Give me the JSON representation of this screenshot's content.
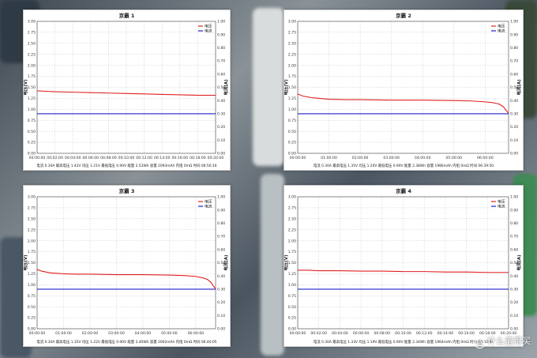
{
  "chart_data": [
    {
      "type": "line",
      "title": "京霸 1",
      "ylabel_left": "电压(V)",
      "ylabel_right": "电流(A)",
      "yticks_left": [
        "0.00",
        "0.25",
        "0.50",
        "0.75",
        "1.00",
        "1.25",
        "1.50",
        "1.75",
        "2.00",
        "2.25",
        "2.50",
        "2.75",
        "3.00"
      ],
      "yticks_right": [
        "0.00",
        "0.10",
        "0.20",
        "0.30",
        "0.40",
        "0.50",
        "0.60",
        "0.70",
        "0.80",
        "0.90",
        "1.00"
      ],
      "ylim_left": [
        0,
        3
      ],
      "ylim_right": [
        0,
        1
      ],
      "xticks": [
        "00:00:00",
        "00:02:00",
        "00:04:00",
        "00:06:00",
        "00:08:00",
        "00:10:00",
        "00:12:00",
        "00:14:00",
        "00:16:00",
        "00:18:00",
        "00:20:00"
      ],
      "xlim": [
        0,
        1200
      ],
      "grid": true,
      "legend": "top-right",
      "series": [
        {
          "name": "电压",
          "color": "#e02020",
          "axis": "left",
          "x": [
            0,
            60,
            120,
            240,
            360,
            480,
            600,
            720,
            840,
            960,
            1080,
            1200
          ],
          "values": [
            1.42,
            1.41,
            1.4,
            1.39,
            1.38,
            1.37,
            1.36,
            1.35,
            1.34,
            1.33,
            1.32,
            1.32
          ]
        },
        {
          "name": "电流",
          "color": "#2020c8",
          "axis": "right",
          "x": [
            0,
            1200
          ],
          "values": [
            0.3,
            0.3
          ]
        }
      ],
      "summary": "电流 0.30A  最高电压 1.42V  均压 1.21V  最低电压 0.90V  能量 2.53Wh  容量 2093mAh  内阻 0mΩ  时间 06:56:16"
    },
    {
      "type": "line",
      "title": "京霸 2",
      "ylabel_left": "电压(V)",
      "ylabel_right": "电流(A)",
      "yticks_left": [
        "0.00",
        "0.25",
        "0.50",
        "0.75",
        "1.00",
        "1.25",
        "1.50",
        "1.75",
        "2.00",
        "2.25",
        "2.50",
        "2.75",
        "3.00"
      ],
      "yticks_right": [
        "0.00",
        "0.10",
        "0.20",
        "0.30",
        "0.40",
        "0.50",
        "0.60",
        "0.70",
        "0.80",
        "0.90",
        "1.00"
      ],
      "ylim_left": [
        0,
        3
      ],
      "ylim_right": [
        0,
        1
      ],
      "xticks": [
        "00:00:00",
        "01:00:00",
        "02:00:00",
        "03:00:00",
        "04:00:00",
        "05:00:00",
        "06:00:00"
      ],
      "xlim": [
        0,
        24300
      ],
      "grid": true,
      "legend": "top-right",
      "series": [
        {
          "name": "电压",
          "color": "#e02020",
          "axis": "left",
          "x": [
            0,
            600,
            1800,
            3600,
            5400,
            7200,
            10800,
            14400,
            18000,
            20000,
            21600,
            22500,
            23200,
            23700,
            24000,
            24300
          ],
          "values": [
            1.35,
            1.3,
            1.26,
            1.23,
            1.22,
            1.22,
            1.21,
            1.21,
            1.2,
            1.19,
            1.17,
            1.15,
            1.12,
            1.06,
            0.98,
            0.91
          ]
        },
        {
          "name": "电流",
          "color": "#2020c8",
          "axis": "right",
          "x": [
            0,
            24300
          ],
          "values": [
            0.3,
            0.3
          ]
        }
      ],
      "summary": "电流 0.30A  最高电压 1.35V  均压 1.20V  最低电压 0.90V  能量 2.38Wh  容量 1986mAh  内阻 0mΩ  时间 06:39:50"
    },
    {
      "type": "line",
      "title": "京霸 3",
      "ylabel_left": "电压(V)",
      "ylabel_right": "电流(A)",
      "yticks_left": [
        "0.00",
        "0.25",
        "0.50",
        "0.75",
        "1.00",
        "1.25",
        "1.50",
        "1.75",
        "2.00",
        "2.25",
        "2.50",
        "2.75",
        "3.00"
      ],
      "yticks_right": [
        "0.00",
        "0.10",
        "0.20",
        "0.30",
        "0.40",
        "0.50",
        "0.60",
        "0.70",
        "0.80",
        "0.90",
        "1.00"
      ],
      "ylim_left": [
        0,
        3
      ],
      "ylim_right": [
        0,
        1
      ],
      "xticks": [
        "00:00:00",
        "01:00:00",
        "02:00:00",
        "03:00:00",
        "04:00:00",
        "05:00:00",
        "06:00:00"
      ],
      "xlim": [
        0,
        24300
      ],
      "grid": true,
      "legend": "top-right",
      "series": [
        {
          "name": "电压",
          "color": "#e02020",
          "axis": "left",
          "x": [
            0,
            600,
            1800,
            3600,
            5400,
            7200,
            10800,
            14400,
            18000,
            20000,
            21600,
            22500,
            23200,
            23700,
            24000,
            24300
          ],
          "values": [
            1.35,
            1.31,
            1.27,
            1.25,
            1.24,
            1.24,
            1.23,
            1.23,
            1.22,
            1.21,
            1.19,
            1.16,
            1.12,
            1.05,
            0.97,
            0.91
          ]
        },
        {
          "name": "电流",
          "color": "#2020c8",
          "axis": "right",
          "x": [
            0,
            24300
          ],
          "values": [
            0.3,
            0.3
          ]
        }
      ],
      "summary": "电流 0.30A  最高电压 1.35V  均压 1.22V  最低电压 0.90V  能量 2.40Wh  容量 2002mAh  内阻 0mΩ  时间 06:40:05"
    },
    {
      "type": "line",
      "title": "京霸 4",
      "ylabel_left": "电压(V)",
      "ylabel_right": "电流(A)",
      "yticks_left": [
        "0.00",
        "0.25",
        "0.50",
        "0.75",
        "1.00",
        "1.25",
        "1.50",
        "1.75",
        "2.00",
        "2.25",
        "2.50",
        "2.75",
        "3.00"
      ],
      "yticks_right": [
        "0.00",
        "0.10",
        "0.20",
        "0.30",
        "0.40",
        "0.50",
        "0.60",
        "0.70",
        "0.80",
        "0.90",
        "1.00"
      ],
      "ylim_left": [
        0,
        3
      ],
      "ylim_right": [
        0,
        1
      ],
      "xticks": [
        "00:00:00",
        "00:02:00",
        "00:04:00",
        "00:06:00",
        "00:08:00",
        "00:10:00",
        "00:12:00",
        "00:14:00",
        "00:16:00",
        "00:18:00",
        "00:20:00"
      ],
      "xlim": [
        0,
        1200
      ],
      "grid": true,
      "legend": "top-right",
      "series": [
        {
          "name": "电压",
          "color": "#e02020",
          "axis": "left",
          "x": [
            0,
            60,
            120,
            240,
            360,
            480,
            600,
            720,
            840,
            960,
            1080,
            1200
          ],
          "values": [
            1.33,
            1.33,
            1.32,
            1.32,
            1.31,
            1.31,
            1.3,
            1.3,
            1.29,
            1.29,
            1.28,
            1.28
          ]
        },
        {
          "name": "电流",
          "color": "#2020c8",
          "axis": "right",
          "x": [
            0,
            1200
          ],
          "values": [
            0.3,
            0.3
          ]
        }
      ],
      "summary": "电流 0.30A  最高电压 1.33V  均压 1.19V  最低电压 0.90V  能量 2.34Wh  容量 1964mAh  内阻 0mΩ  时间 06:32:34"
    }
  ],
  "watermark": "什么值得买",
  "colors": {
    "grid": "#c8c8c8",
    "axis": "#404040",
    "tick_text": "#333333"
  }
}
